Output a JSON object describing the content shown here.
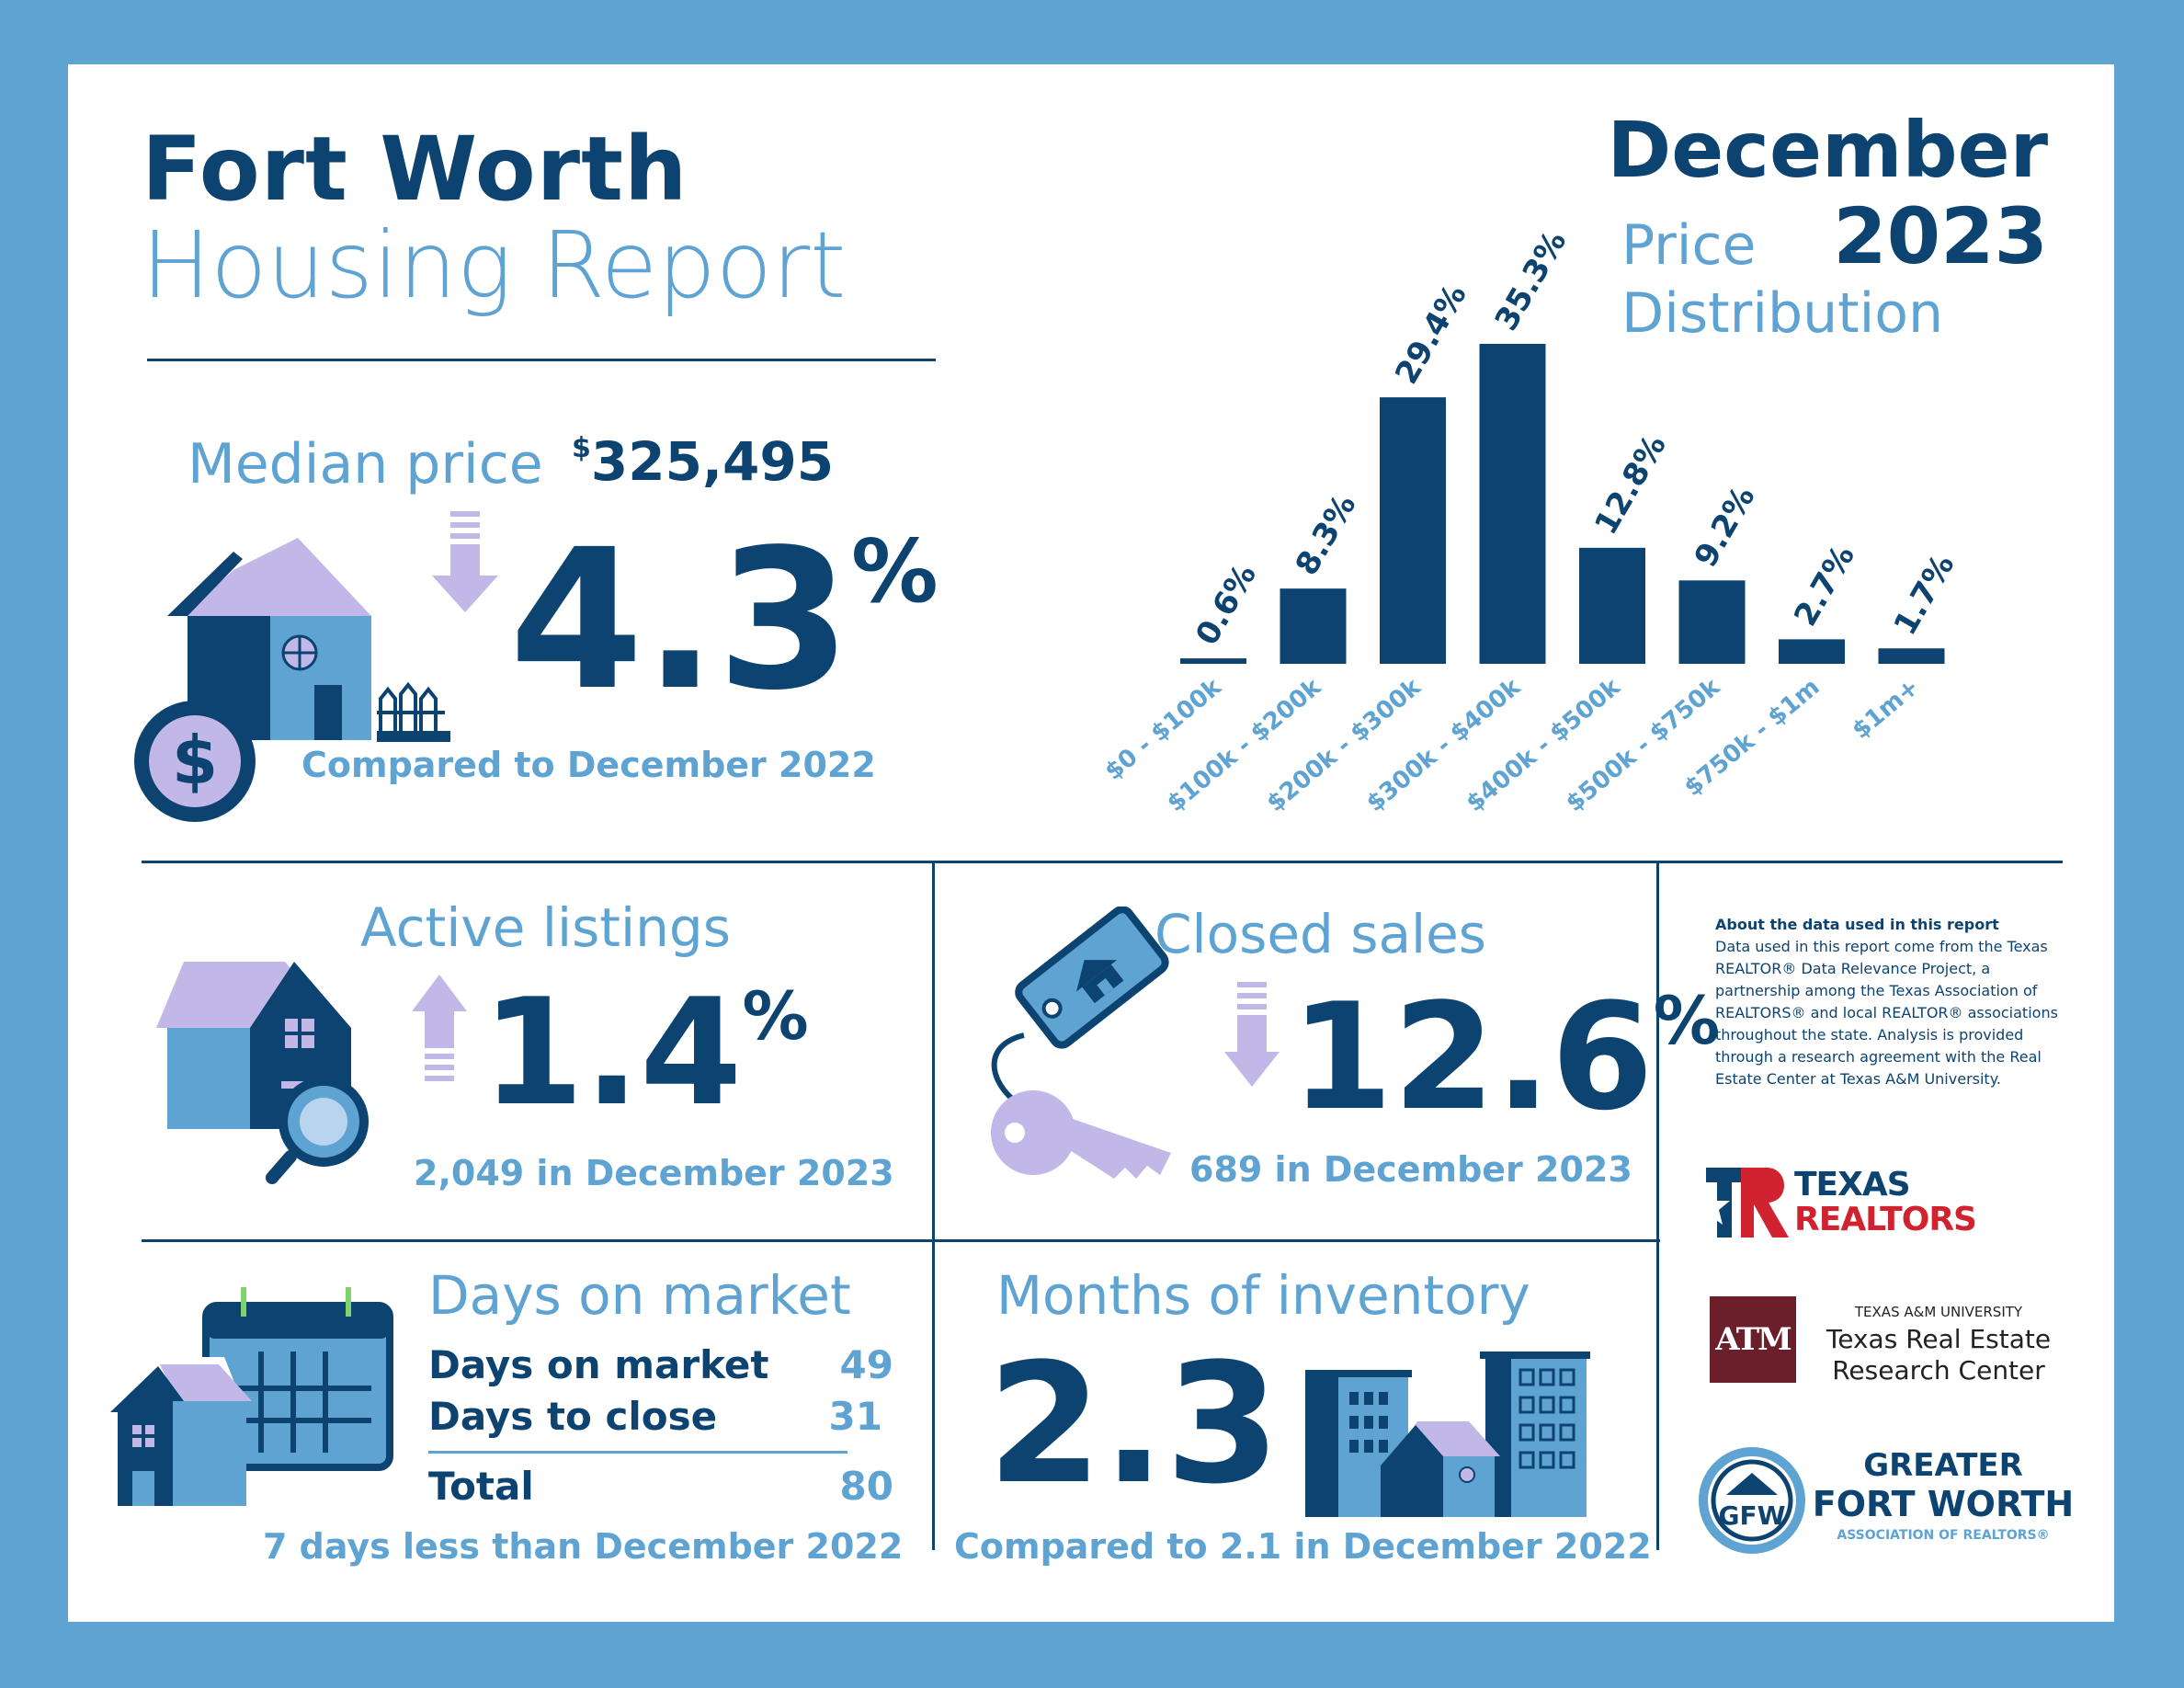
{
  "header": {
    "title_line1": "Fort Worth",
    "title_line2": "Housing Report",
    "month": "December",
    "year": "2023",
    "chart_title_line1": "Price",
    "chart_title_line2": "Distribution"
  },
  "median": {
    "label": "Median price",
    "currency": "$",
    "value": "325,495",
    "change": "4.3",
    "pct": "%",
    "direction": "down",
    "comparison": "Compared to December 2022"
  },
  "active": {
    "title": "Active listings",
    "change": "1.4",
    "pct": "%",
    "direction": "up",
    "detail": "2,049 in December 2023"
  },
  "closed": {
    "title": "Closed sales",
    "change": "12.6",
    "pct": "%",
    "direction": "down",
    "detail": "689 in December 2023"
  },
  "dom": {
    "title": "Days on market",
    "rows": [
      {
        "label": "Days on market",
        "value": "49"
      },
      {
        "label": "Days to close",
        "value": "31"
      }
    ],
    "total_label": "Total",
    "total_value": "80",
    "footnote": "7 days less than December 2022"
  },
  "inventory": {
    "title": "Months of inventory",
    "value": "2.3",
    "footnote": "Compared to 2.1 in December 2022"
  },
  "about": {
    "heading": "About the data used in this report",
    "body": "Data used in this report come from the Texas REALTOR® Data Relevance Project, a partnership among the Texas Association of REALTORS® and local REALTOR® associations throughout the state. Analysis is provided through a research agreement with the Real Estate Center at Texas A&M University."
  },
  "logos": {
    "texas_realtors_line1": "TEXAS",
    "texas_realtors_line2": "REALTORS",
    "tamu_mark": "ATM",
    "tamu_line1": "TEXAS A&M UNIVERSITY",
    "tamu_line2": "Texas Real Estate",
    "tamu_line3": "Research Center",
    "gfw_mark": "GFW",
    "gfw_line1": "GREATER",
    "gfw_line2": "FORT WORTH",
    "gfw_line3": "ASSOCIATION OF REALTORS®"
  },
  "colors": {
    "navy": "#0c4370",
    "light_blue": "#5ea3d1",
    "lavender": "#c1b8e8",
    "realtors_red": "#d0222f",
    "tamu_maroon": "#6b1f2a"
  },
  "chart_data": {
    "type": "bar",
    "categories": [
      "$0 - $100k",
      "$100k - $200k",
      "$200k - $300k",
      "$300k - $400k",
      "$400k - $500k",
      "$500k - $750k",
      "$750k - $1m",
      "$1m+"
    ],
    "values": [
      0.6,
      8.3,
      29.4,
      35.3,
      12.8,
      9.2,
      2.7,
      1.7
    ],
    "value_labels": [
      "0.6%",
      "8.3%",
      "29.4%",
      "35.3%",
      "12.8%",
      "9.2%",
      "2.7%",
      "1.7%"
    ],
    "title": "Price Distribution",
    "ylim": [
      0,
      35.3
    ],
    "grid": false,
    "legend": "none"
  }
}
